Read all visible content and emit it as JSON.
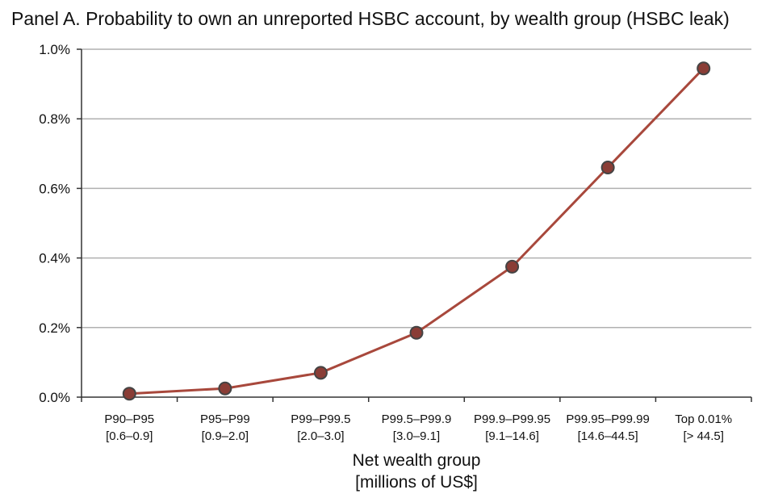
{
  "title": "Panel A. Probability to own an unreported HSBC account, by wealth group (HSBC leak)",
  "chart_data": {
    "type": "line",
    "categories": [
      [
        "P90–P95",
        "[0.6–0.9]"
      ],
      [
        "P95–P99",
        "[0.9–2.0]"
      ],
      [
        "P99–P99.5",
        "[2.0–3.0]"
      ],
      [
        "P99.5–P99.9",
        "[3.0–9.1]"
      ],
      [
        "P99.9–P99.95",
        "[9.1–14.6]"
      ],
      [
        "P99.95–P99.99",
        "[14.6–44.5]"
      ],
      [
        "Top 0.01%",
        "[> 44.5]"
      ]
    ],
    "values": [
      0.01,
      0.025,
      0.07,
      0.185,
      0.375,
      0.66,
      0.945
    ],
    "ylim": [
      0,
      1.0
    ],
    "yticks": [
      "0.0%",
      "0.2%",
      "0.4%",
      "0.6%",
      "0.8%",
      "1.0%"
    ],
    "xlabel": [
      "Net wealth group",
      "[millions of US$]"
    ],
    "ylabel": "",
    "grid": true,
    "colors": {
      "line": "#a8483c",
      "marker": "#8a3d36",
      "marker_edge": "#444444",
      "grid": "#b0b0b0",
      "axis": "#333333"
    }
  }
}
